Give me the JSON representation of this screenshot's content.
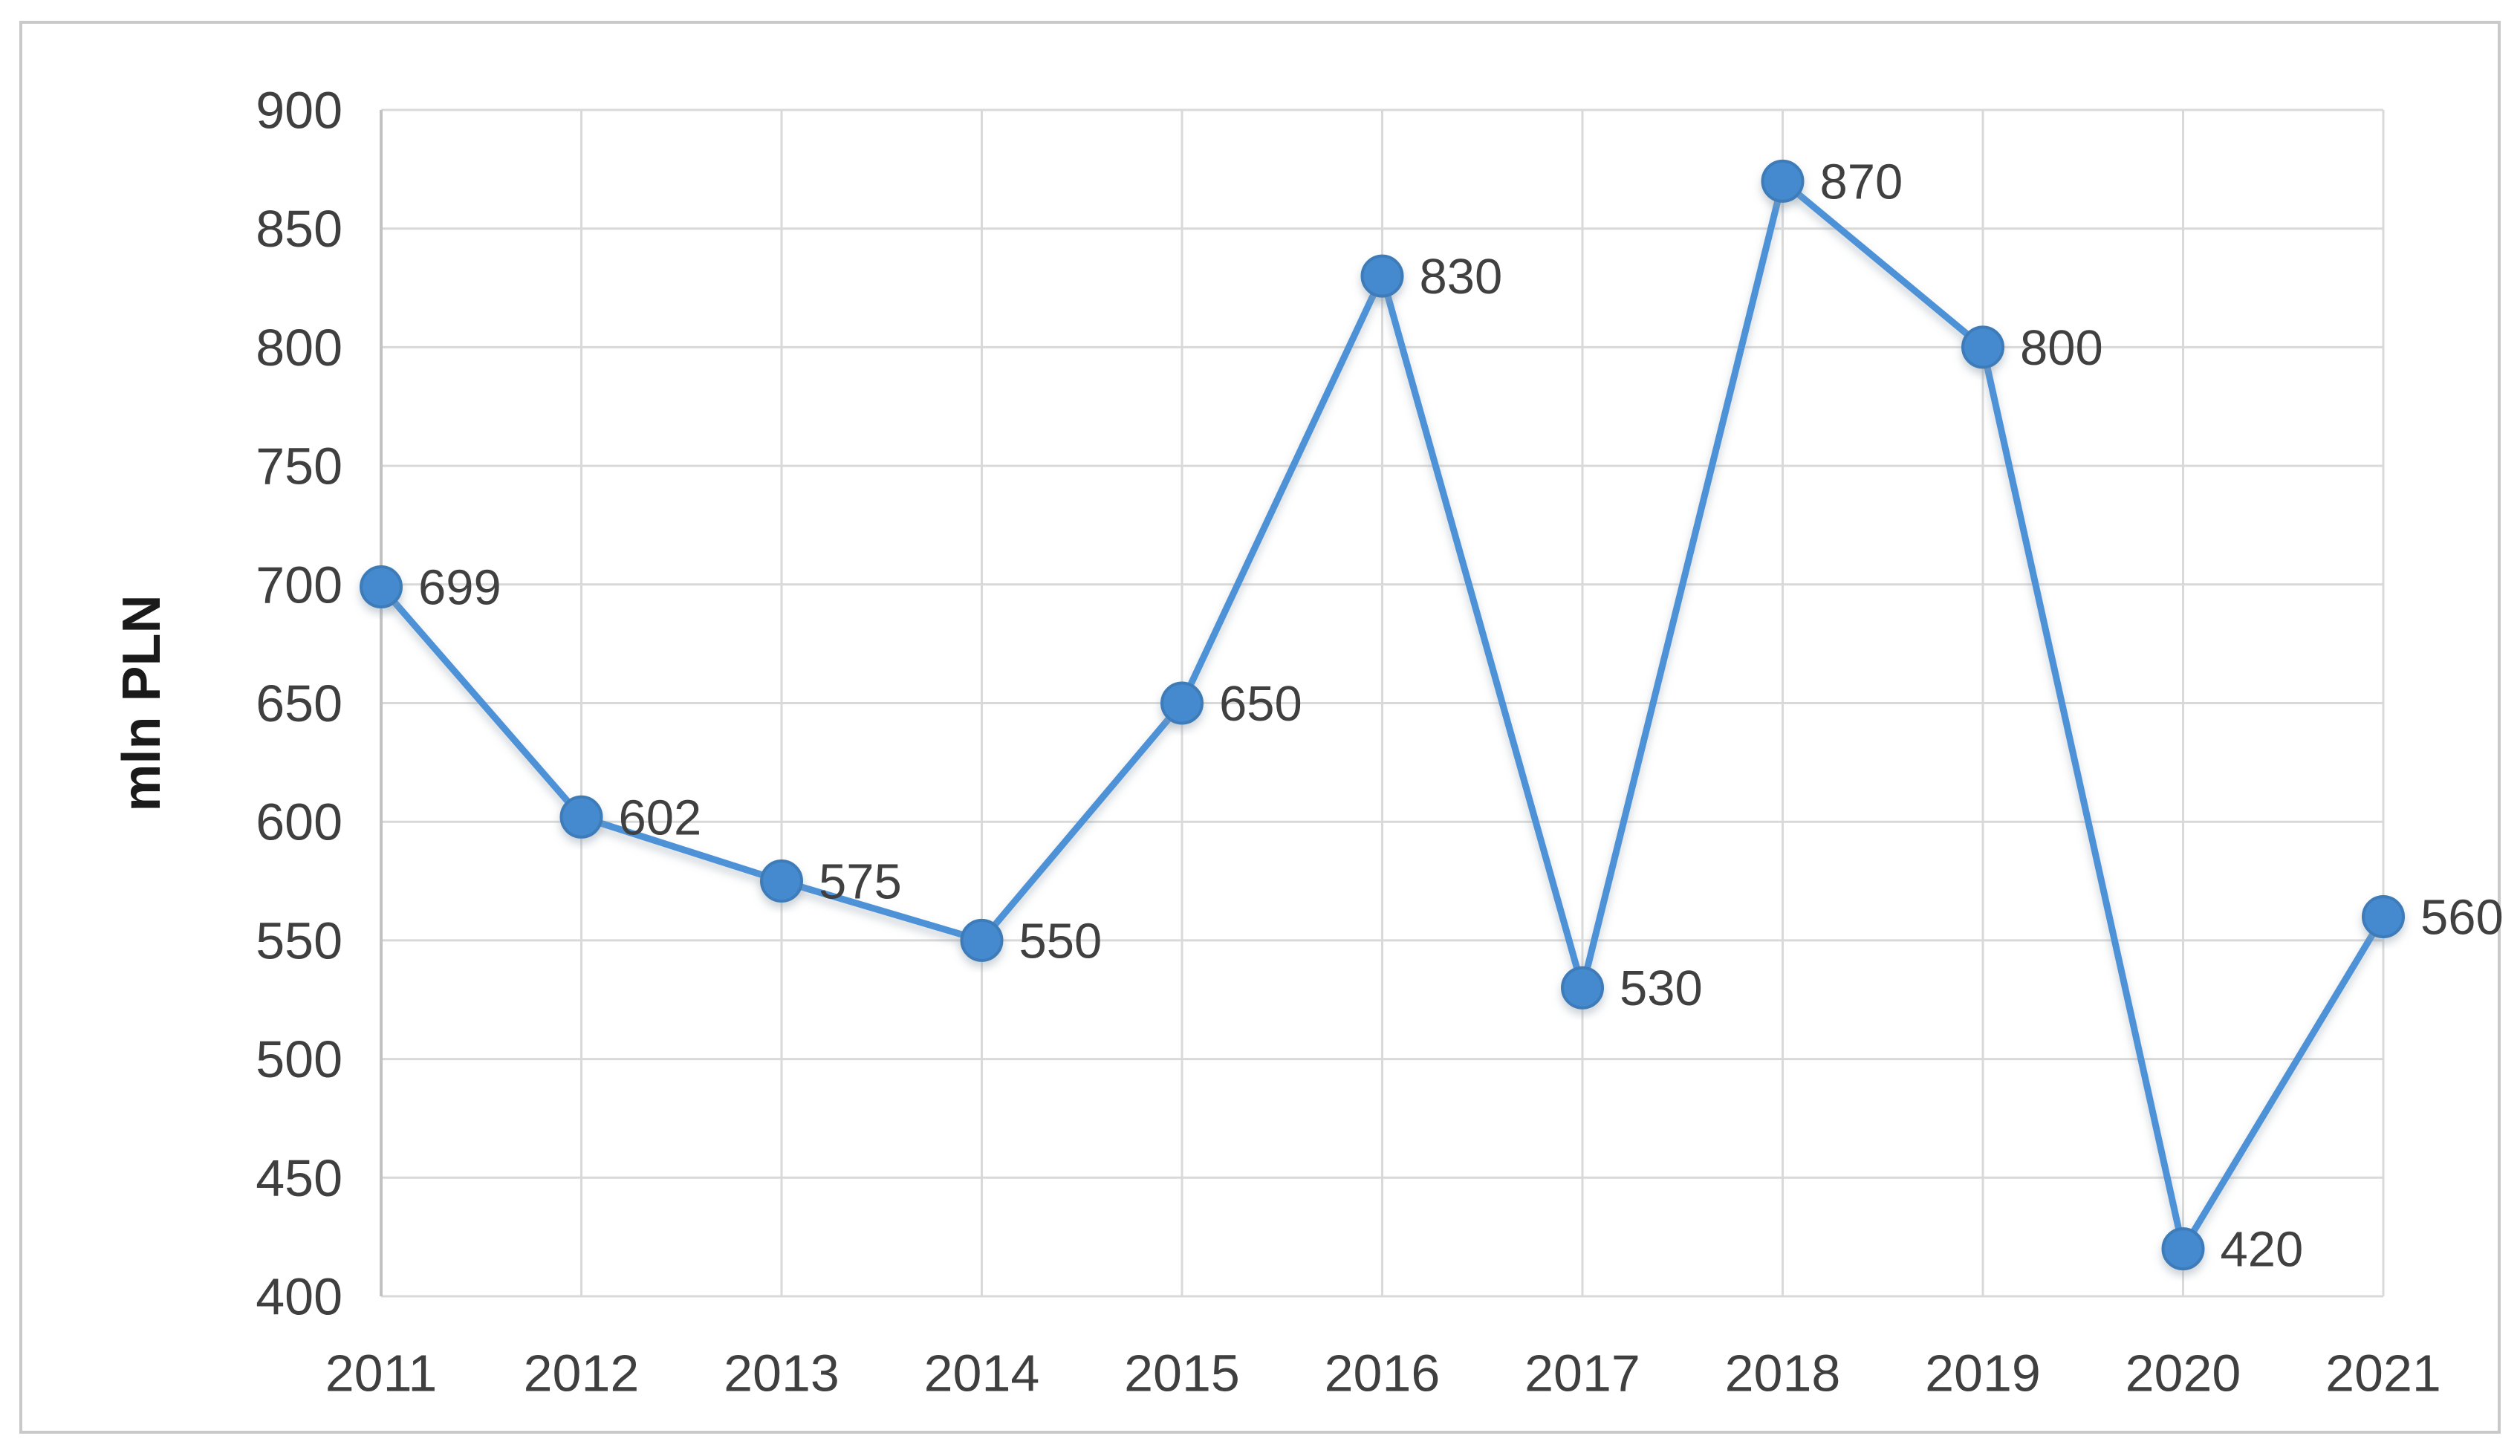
{
  "figure": {
    "background": "#ffffff",
    "border_color": "#c9c9c9"
  },
  "chart_data": {
    "type": "line",
    "title": "",
    "xlabel": "",
    "ylabel": "mln PLN",
    "categories": [
      "2011",
      "2012",
      "2013",
      "2014",
      "2015",
      "2016",
      "2017",
      "2018",
      "2019",
      "2020",
      "2021"
    ],
    "values": [
      699,
      602,
      575,
      550,
      650,
      830,
      530,
      870,
      800,
      420,
      560
    ],
    "ylim": [
      400,
      900
    ],
    "yticks": [
      400,
      450,
      500,
      550,
      600,
      650,
      700,
      750,
      800,
      850,
      900
    ],
    "grid": {
      "horizontal": true,
      "vertical": true
    },
    "legend": "none",
    "data_labels_shown": true,
    "marker": "circle",
    "colors": {
      "line": "#4E92D7",
      "marker_fill": "#4489CE",
      "marker_stroke": "#3D7CB9",
      "grid_line": "#D9D9D9",
      "axis_line": "#C2C2C2",
      "tick_text": "#3F3F3F",
      "data_label_text": "#404040"
    }
  }
}
